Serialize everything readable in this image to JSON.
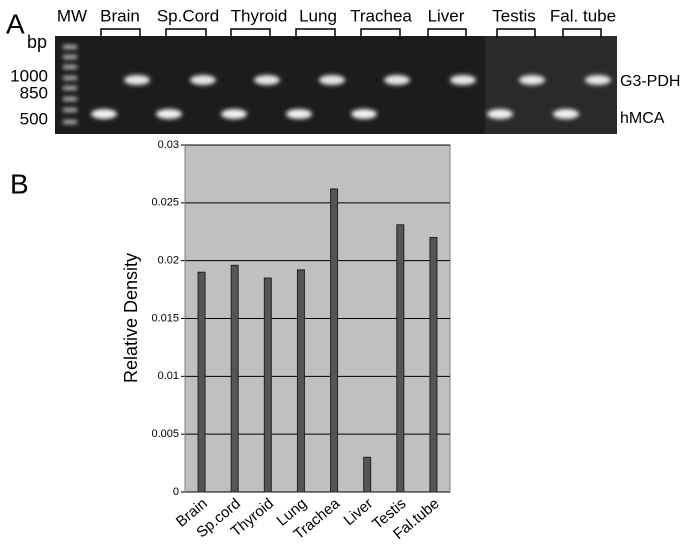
{
  "gel": {
    "panel_label": "A",
    "bp_label": "bp",
    "lane_labels": [
      "MW",
      "Brain",
      "Sp.Cord",
      "Thyroid",
      "Lung",
      "Trachea",
      "Liver",
      "Testis",
      "Fal. tube"
    ],
    "size_markers": [
      "1000",
      "850",
      "500"
    ],
    "band_labels": [
      "G3-PDH",
      "hMCA"
    ]
  },
  "panel_b_label": "B",
  "chart_data": {
    "type": "bar",
    "y_label": "Relative Density",
    "categories": [
      "Brain",
      "Sp.cord",
      "Thyroid",
      "Lung",
      "Trachea",
      "Liver",
      "Testis",
      "Fal.tube"
    ],
    "values": [
      0.019,
      0.0196,
      0.0185,
      0.0192,
      0.0262,
      0.003,
      0.0231,
      0.022
    ],
    "color": "#555555",
    "ylim": [
      0,
      0.03
    ],
    "yticks": [
      0,
      0.005,
      0.01,
      0.015,
      0.02,
      0.025,
      0.03
    ],
    "grid": true
  }
}
